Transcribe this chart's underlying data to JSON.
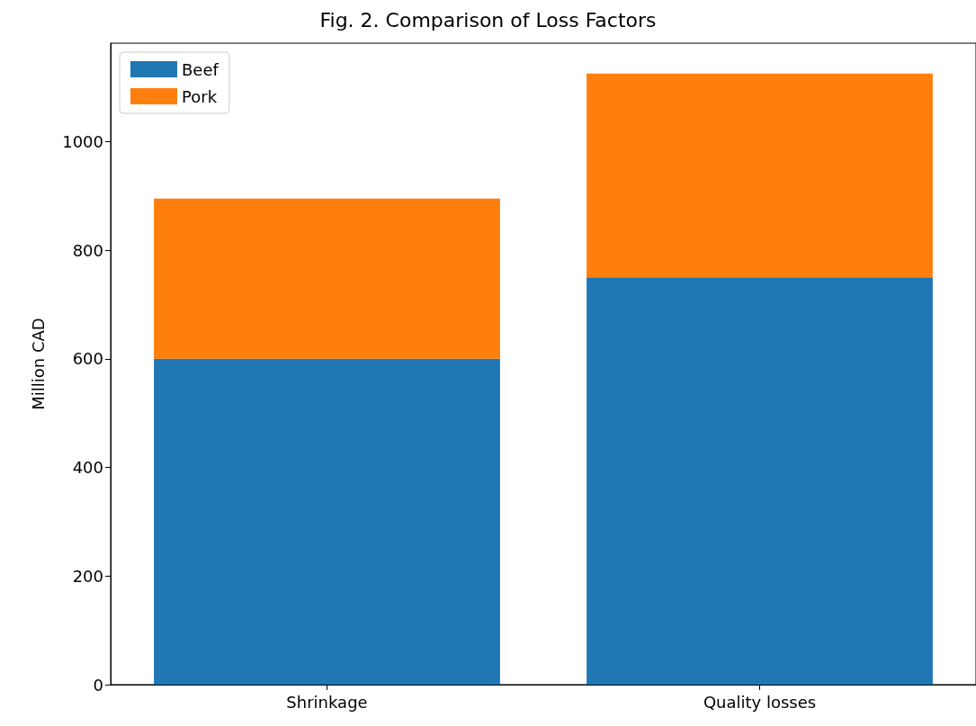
{
  "chart_data": {
    "type": "bar",
    "title": "Fig. 2. Comparison of Loss Factors",
    "ylabel": "Million CAD",
    "categories": [
      "Shrinkage",
      "Quality losses"
    ],
    "stacked": true,
    "series": [
      {
        "name": "Beef",
        "color": "#1f77b4",
        "values": [
          600,
          750
        ]
      },
      {
        "name": "Pork",
        "color": "#ff7f0e",
        "values": [
          295,
          375
        ]
      }
    ],
    "ylim": [
      0,
      1181
    ],
    "yticks": [
      0,
      200,
      400,
      600,
      800,
      1000
    ],
    "grid": false,
    "legend": "top left"
  }
}
